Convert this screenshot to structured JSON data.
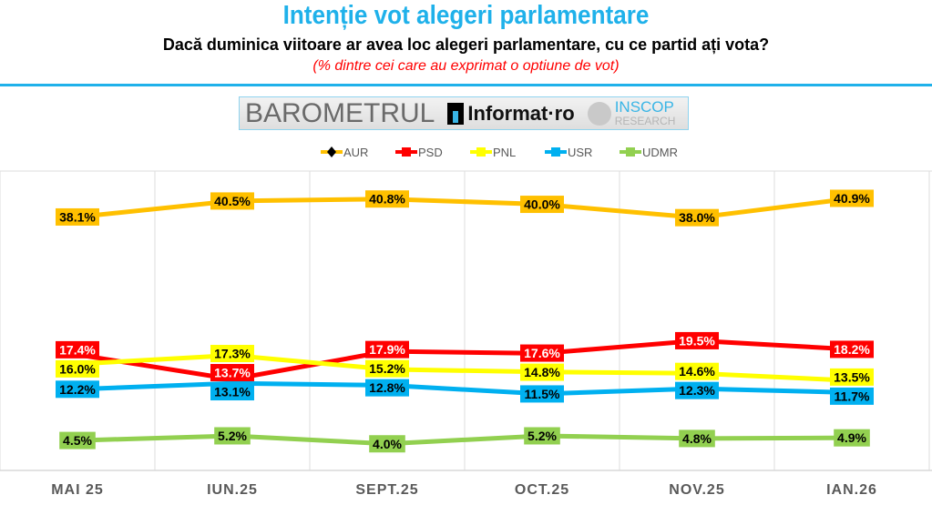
{
  "header": {
    "title": "Intenție vot alegeri parlamentare",
    "subtitle": "Dacă duminica viitoare ar avea loc alegeri parlamentare, cu ce partid ați vota?",
    "note": "(% dintre cei care au exprimat o optiune de vot)"
  },
  "logo": {
    "barometrul": "BAROMETRUL",
    "informat": "Informat·ro",
    "inscop": "INSCOP",
    "research": "RESEARCH"
  },
  "chart_data": {
    "type": "line",
    "categories": [
      "MAI 25",
      "IUN.25",
      "SEPT.25",
      "OCT.25",
      "NOV.25",
      "IAN.26"
    ],
    "ylim": [
      0,
      45
    ],
    "grid": "vertical",
    "legend": "top-center",
    "series": [
      {
        "name": "AUR",
        "color": "#FFC000",
        "label_text": "#000000",
        "values": [
          38.1,
          40.5,
          40.8,
          40.0,
          38.0,
          40.9
        ]
      },
      {
        "name": "PSD",
        "color": "#FF0000",
        "label_text": "#FFFFFF",
        "values": [
          17.4,
          13.7,
          17.9,
          17.6,
          19.5,
          18.2
        ]
      },
      {
        "name": "PNL",
        "color": "#FFFF00",
        "label_text": "#000000",
        "values": [
          16.0,
          17.3,
          15.2,
          14.8,
          14.6,
          13.5
        ]
      },
      {
        "name": "USR",
        "color": "#00B0F0",
        "label_text": "#000000",
        "values": [
          12.2,
          13.1,
          12.8,
          11.5,
          12.3,
          11.7
        ]
      },
      {
        "name": "UDMR",
        "color": "#92D050",
        "label_text": "#000000",
        "values": [
          4.5,
          5.2,
          4.0,
          5.2,
          4.8,
          4.9
        ]
      }
    ]
  }
}
